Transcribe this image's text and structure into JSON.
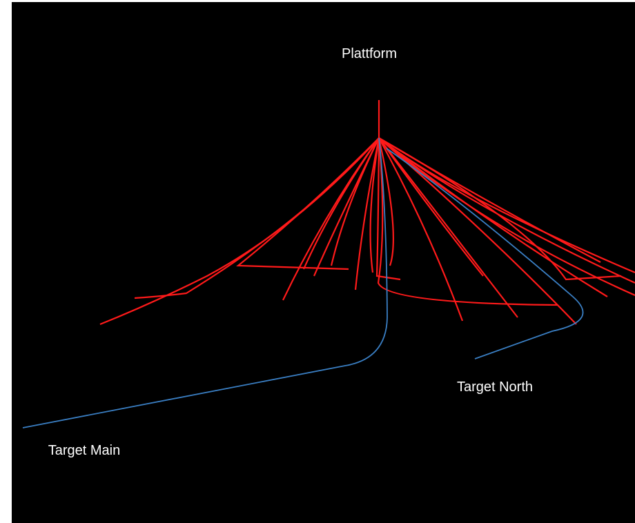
{
  "labels": {
    "platform": "Plattform",
    "target_north": "Target North",
    "target_main": "Target Main"
  }
}
